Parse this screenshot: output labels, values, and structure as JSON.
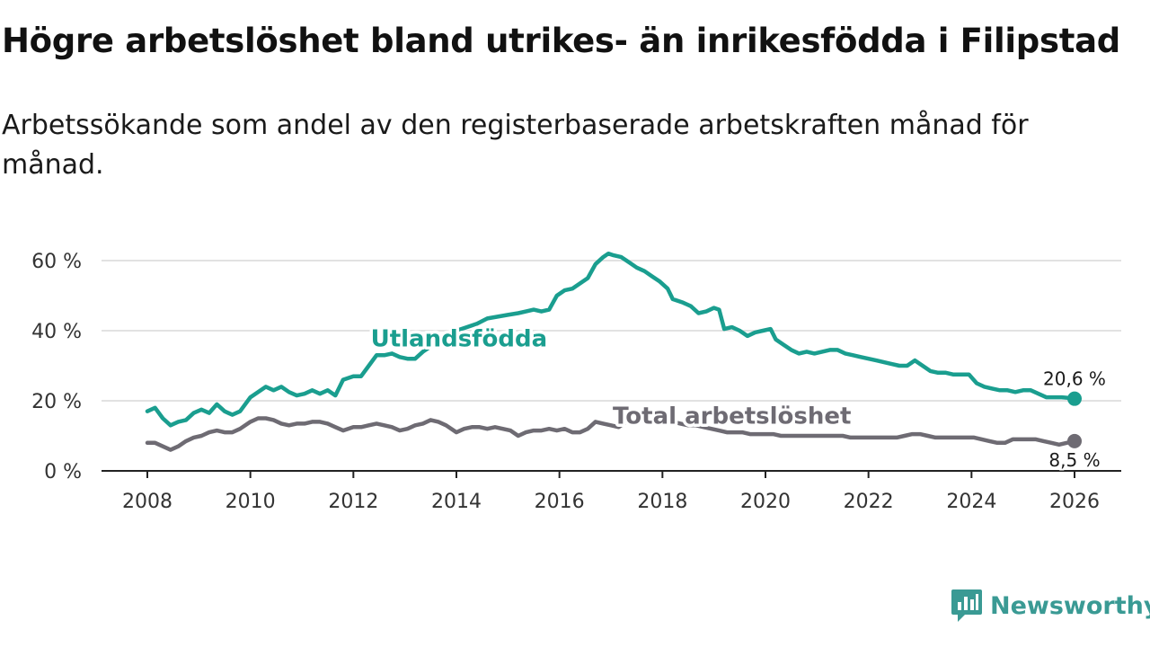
{
  "title": "Högre arbetslöshet bland utrikes- än inrikesfödda i Filipstad",
  "subtitle": "Arbetssökande som andel av den registerbaserade arbetskraften månad för månad.",
  "brand": {
    "name": "Newsworthy",
    "color": "#3a9a94"
  },
  "chart_data": {
    "type": "line",
    "title": "Högre arbetslöshet bland utrikes- än inrikesfödda i Filipstad",
    "subtitle": "Arbetssökande som andel av den registerbaserade arbetskraften månad för månad.",
    "xlabel": "",
    "ylabel": "",
    "xlim": [
      2007.5,
      2026.9
    ],
    "ylim": [
      0,
      60
    ],
    "xticks": [
      2008,
      2010,
      2012,
      2014,
      2016,
      2018,
      2020,
      2022,
      2024,
      2026
    ],
    "yticks": [
      0,
      20,
      40,
      60
    ],
    "ytick_labels": [
      "0 %",
      "20 %",
      "40 %",
      "60 %"
    ],
    "grid": true,
    "series": [
      {
        "name": "Utlandsfödda",
        "color": "#1a9e8f",
        "end_label": "20,6 %",
        "points": [
          [
            2008.0,
            17.0
          ],
          [
            2008.15,
            18.0
          ],
          [
            2008.3,
            15.0
          ],
          [
            2008.45,
            13.0
          ],
          [
            2008.6,
            14.0
          ],
          [
            2008.75,
            14.5
          ],
          [
            2008.9,
            16.5
          ],
          [
            2009.05,
            17.5
          ],
          [
            2009.2,
            16.5
          ],
          [
            2009.35,
            19.0
          ],
          [
            2009.5,
            17.0
          ],
          [
            2009.65,
            16.0
          ],
          [
            2009.8,
            17.0
          ],
          [
            2010.0,
            21.0
          ],
          [
            2010.15,
            22.5
          ],
          [
            2010.3,
            24.0
          ],
          [
            2010.45,
            23.0
          ],
          [
            2010.6,
            24.0
          ],
          [
            2010.75,
            22.5
          ],
          [
            2010.9,
            21.5
          ],
          [
            2011.05,
            22.0
          ],
          [
            2011.2,
            23.0
          ],
          [
            2011.35,
            22.0
          ],
          [
            2011.5,
            23.0
          ],
          [
            2011.65,
            21.5
          ],
          [
            2011.8,
            26.0
          ],
          [
            2012.0,
            27.0
          ],
          [
            2012.15,
            27.0
          ],
          [
            2012.3,
            30.0
          ],
          [
            2012.45,
            33.0
          ],
          [
            2012.6,
            33.0
          ],
          [
            2012.75,
            33.5
          ],
          [
            2012.9,
            32.5
          ],
          [
            2013.05,
            32.0
          ],
          [
            2013.2,
            32.0
          ],
          [
            2013.35,
            34.0
          ],
          [
            2013.5,
            35.5
          ],
          [
            2013.65,
            37.0
          ],
          [
            2013.8,
            38.5
          ],
          [
            2014.0,
            40.0
          ],
          [
            2014.2,
            41.0
          ],
          [
            2014.4,
            42.0
          ],
          [
            2014.6,
            43.5
          ],
          [
            2014.8,
            44.0
          ],
          [
            2015.0,
            44.5
          ],
          [
            2015.2,
            45.0
          ],
          [
            2015.35,
            45.5
          ],
          [
            2015.5,
            46.0
          ],
          [
            2015.65,
            45.5
          ],
          [
            2015.8,
            46.0
          ],
          [
            2015.95,
            50.0
          ],
          [
            2016.1,
            51.5
          ],
          [
            2016.25,
            52.0
          ],
          [
            2016.4,
            53.5
          ],
          [
            2016.55,
            55.0
          ],
          [
            2016.7,
            59.0
          ],
          [
            2016.85,
            61.0
          ],
          [
            2016.95,
            62.0
          ],
          [
            2017.05,
            61.5
          ],
          [
            2017.2,
            61.0
          ],
          [
            2017.35,
            59.5
          ],
          [
            2017.5,
            58.0
          ],
          [
            2017.65,
            57.0
          ],
          [
            2017.8,
            55.5
          ],
          [
            2017.95,
            54.0
          ],
          [
            2018.1,
            52.0
          ],
          [
            2018.2,
            49.0
          ],
          [
            2018.4,
            48.0
          ],
          [
            2018.55,
            47.0
          ],
          [
            2018.7,
            45.0
          ],
          [
            2018.85,
            45.5
          ],
          [
            2019.0,
            46.5
          ],
          [
            2019.1,
            46.0
          ],
          [
            2019.2,
            40.5
          ],
          [
            2019.35,
            41.0
          ],
          [
            2019.5,
            40.0
          ],
          [
            2019.65,
            38.5
          ],
          [
            2019.8,
            39.5
          ],
          [
            2019.95,
            40.0
          ],
          [
            2020.1,
            40.5
          ],
          [
            2020.2,
            37.5
          ],
          [
            2020.35,
            36.0
          ],
          [
            2020.5,
            34.5
          ],
          [
            2020.65,
            33.5
          ],
          [
            2020.8,
            34.0
          ],
          [
            2020.95,
            33.5
          ],
          [
            2021.1,
            34.0
          ],
          [
            2021.25,
            34.5
          ],
          [
            2021.4,
            34.5
          ],
          [
            2021.55,
            33.5
          ],
          [
            2021.7,
            33.0
          ],
          [
            2021.85,
            32.5
          ],
          [
            2022.0,
            32.0
          ],
          [
            2022.15,
            31.5
          ],
          [
            2022.3,
            31.0
          ],
          [
            2022.45,
            30.5
          ],
          [
            2022.6,
            30.0
          ],
          [
            2022.75,
            30.0
          ],
          [
            2022.9,
            31.5
          ],
          [
            2023.05,
            30.0
          ],
          [
            2023.2,
            28.5
          ],
          [
            2023.35,
            28.0
          ],
          [
            2023.5,
            28.0
          ],
          [
            2023.65,
            27.5
          ],
          [
            2023.8,
            27.5
          ],
          [
            2023.95,
            27.5
          ],
          [
            2024.1,
            25.0
          ],
          [
            2024.25,
            24.0
          ],
          [
            2024.4,
            23.5
          ],
          [
            2024.55,
            23.0
          ],
          [
            2024.7,
            23.0
          ],
          [
            2024.85,
            22.5
          ],
          [
            2025.0,
            23.0
          ],
          [
            2025.15,
            23.0
          ],
          [
            2025.3,
            22.0
          ],
          [
            2025.45,
            21.0
          ],
          [
            2025.6,
            21.0
          ],
          [
            2025.75,
            21.0
          ],
          [
            2025.9,
            20.8
          ],
          [
            2026.0,
            20.6
          ]
        ]
      },
      {
        "name": "Total arbetslöshet",
        "color": "#6e6b73",
        "end_label": "8,5 %",
        "points": [
          [
            2008.0,
            8.0
          ],
          [
            2008.15,
            8.0
          ],
          [
            2008.3,
            7.0
          ],
          [
            2008.45,
            6.0
          ],
          [
            2008.6,
            7.0
          ],
          [
            2008.75,
            8.5
          ],
          [
            2008.9,
            9.5
          ],
          [
            2009.05,
            10.0
          ],
          [
            2009.2,
            11.0
          ],
          [
            2009.35,
            11.5
          ],
          [
            2009.5,
            11.0
          ],
          [
            2009.65,
            11.0
          ],
          [
            2009.8,
            12.0
          ],
          [
            2010.0,
            14.0
          ],
          [
            2010.15,
            15.0
          ],
          [
            2010.3,
            15.0
          ],
          [
            2010.45,
            14.5
          ],
          [
            2010.6,
            13.5
          ],
          [
            2010.75,
            13.0
          ],
          [
            2010.9,
            13.5
          ],
          [
            2011.05,
            13.5
          ],
          [
            2011.2,
            14.0
          ],
          [
            2011.35,
            14.0
          ],
          [
            2011.5,
            13.5
          ],
          [
            2011.65,
            12.5
          ],
          [
            2011.8,
            11.5
          ],
          [
            2012.0,
            12.5
          ],
          [
            2012.15,
            12.5
          ],
          [
            2012.3,
            13.0
          ],
          [
            2012.45,
            13.5
          ],
          [
            2012.6,
            13.0
          ],
          [
            2012.75,
            12.5
          ],
          [
            2012.9,
            11.5
          ],
          [
            2013.05,
            12.0
          ],
          [
            2013.2,
            13.0
          ],
          [
            2013.35,
            13.5
          ],
          [
            2013.5,
            14.5
          ],
          [
            2013.65,
            14.0
          ],
          [
            2013.8,
            13.0
          ],
          [
            2014.0,
            11.0
          ],
          [
            2014.15,
            12.0
          ],
          [
            2014.3,
            12.5
          ],
          [
            2014.45,
            12.5
          ],
          [
            2014.6,
            12.0
          ],
          [
            2014.75,
            12.5
          ],
          [
            2014.9,
            12.0
          ],
          [
            2015.05,
            11.5
          ],
          [
            2015.2,
            10.0
          ],
          [
            2015.35,
            11.0
          ],
          [
            2015.5,
            11.5
          ],
          [
            2015.65,
            11.5
          ],
          [
            2015.8,
            12.0
          ],
          [
            2015.95,
            11.5
          ],
          [
            2016.1,
            12.0
          ],
          [
            2016.25,
            11.0
          ],
          [
            2016.4,
            11.0
          ],
          [
            2016.55,
            12.0
          ],
          [
            2016.7,
            14.0
          ],
          [
            2016.85,
            13.5
          ],
          [
            2017.0,
            13.0
          ],
          [
            2017.15,
            12.5
          ],
          [
            2017.3,
            14.0
          ],
          [
            2017.45,
            15.0
          ],
          [
            2017.6,
            15.5
          ],
          [
            2017.75,
            16.0
          ],
          [
            2017.9,
            16.0
          ],
          [
            2018.05,
            15.0
          ],
          [
            2018.2,
            14.0
          ],
          [
            2018.35,
            13.5
          ],
          [
            2018.5,
            13.0
          ],
          [
            2018.65,
            13.0
          ],
          [
            2018.8,
            12.5
          ],
          [
            2018.95,
            12.0
          ],
          [
            2019.1,
            11.5
          ],
          [
            2019.25,
            11.0
          ],
          [
            2019.4,
            11.0
          ],
          [
            2019.55,
            11.0
          ],
          [
            2019.7,
            10.5
          ],
          [
            2019.85,
            10.5
          ],
          [
            2020.0,
            10.5
          ],
          [
            2020.15,
            10.5
          ],
          [
            2020.3,
            10.0
          ],
          [
            2020.45,
            10.0
          ],
          [
            2020.6,
            10.0
          ],
          [
            2020.75,
            10.0
          ],
          [
            2020.9,
            10.0
          ],
          [
            2021.05,
            10.0
          ],
          [
            2021.2,
            10.0
          ],
          [
            2021.35,
            10.0
          ],
          [
            2021.5,
            10.0
          ],
          [
            2021.65,
            9.5
          ],
          [
            2021.8,
            9.5
          ],
          [
            2021.95,
            9.5
          ],
          [
            2022.1,
            9.5
          ],
          [
            2022.25,
            9.5
          ],
          [
            2022.4,
            9.5
          ],
          [
            2022.55,
            9.5
          ],
          [
            2022.7,
            10.0
          ],
          [
            2022.85,
            10.5
          ],
          [
            2023.0,
            10.5
          ],
          [
            2023.15,
            10.0
          ],
          [
            2023.3,
            9.5
          ],
          [
            2023.45,
            9.5
          ],
          [
            2023.6,
            9.5
          ],
          [
            2023.75,
            9.5
          ],
          [
            2023.9,
            9.5
          ],
          [
            2024.05,
            9.5
          ],
          [
            2024.2,
            9.0
          ],
          [
            2024.35,
            8.5
          ],
          [
            2024.5,
            8.0
          ],
          [
            2024.65,
            8.0
          ],
          [
            2024.8,
            9.0
          ],
          [
            2024.95,
            9.0
          ],
          [
            2025.1,
            9.0
          ],
          [
            2025.25,
            9.0
          ],
          [
            2025.4,
            8.5
          ],
          [
            2025.55,
            8.0
          ],
          [
            2025.7,
            7.5
          ],
          [
            2025.85,
            8.0
          ],
          [
            2026.0,
            8.5
          ]
        ]
      }
    ],
    "annotations": [
      {
        "text": "Utlandsfödda",
        "series": "Utlandsfödda",
        "x": 2014.05,
        "y": 35.5,
        "color": "#1a9e8f"
      },
      {
        "text": "Total arbetslöshet",
        "series": "Total arbetslöshet",
        "x": 2019.35,
        "y": 13.5,
        "color": "#6e6b73"
      }
    ]
  }
}
